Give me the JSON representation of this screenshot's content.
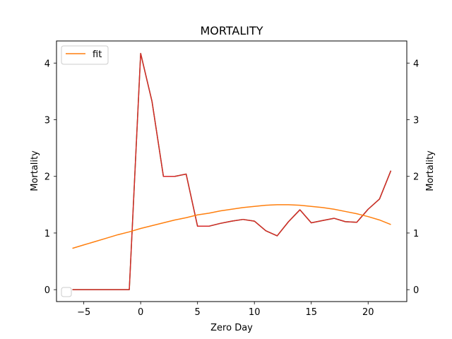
{
  "chart_data": {
    "type": "line",
    "title": "MORTALITY",
    "xlabel": "Zero Day",
    "ylabel_left": "Mortality",
    "ylabel_right": "Mortality",
    "xlim": [
      -7.4,
      23.4
    ],
    "ylim": [
      -0.21,
      4.39
    ],
    "x_ticks": [
      -5,
      0,
      5,
      10,
      15,
      20
    ],
    "x_tick_labels": [
      "−5",
      "0",
      "5",
      "10",
      "15",
      "20"
    ],
    "y_ticks": [
      0,
      1,
      2,
      3,
      4
    ],
    "y_tick_labels": [
      "0",
      "1",
      "2",
      "3",
      "4"
    ],
    "grid": false,
    "legend_placement": "upper-left",
    "series": [
      {
        "name": "",
        "color": "#2ca02c",
        "x": [
          -6,
          -5,
          -4,
          -3,
          -2,
          -1,
          0,
          1,
          2,
          3,
          4,
          5,
          6,
          7,
          8,
          9,
          10,
          11,
          12,
          13,
          14,
          15,
          16,
          17,
          18,
          19,
          20,
          21,
          22
        ],
        "values": [
          0,
          0,
          0,
          0,
          0,
          0,
          4.17,
          3.32,
          2.0,
          2.0,
          2.04,
          1.12,
          1.12,
          1.17,
          1.21,
          1.24,
          1.21,
          1.04,
          0.95,
          1.2,
          1.41,
          1.18,
          1.22,
          1.26,
          1.2,
          1.19,
          1.42,
          1.6,
          2.1
        ]
      },
      {
        "name": "",
        "color": "#d62728",
        "x": [
          -6,
          -5,
          -4,
          -3,
          -2,
          -1,
          0,
          1,
          2,
          3,
          4,
          5,
          6,
          7,
          8,
          9,
          10,
          11,
          12,
          13,
          14,
          15,
          16,
          17,
          18,
          19,
          20,
          21,
          22
        ],
        "values": [
          0,
          0,
          0,
          0,
          0,
          0,
          4.17,
          3.32,
          2.0,
          2.0,
          2.04,
          1.12,
          1.12,
          1.17,
          1.21,
          1.24,
          1.21,
          1.04,
          0.95,
          1.2,
          1.41,
          1.18,
          1.22,
          1.26,
          1.2,
          1.19,
          1.42,
          1.6,
          2.1
        ]
      },
      {
        "name": "fit",
        "color": "#ff7f0e",
        "x": [
          -6,
          -5,
          -4,
          -3,
          -2,
          -1,
          0,
          1,
          2,
          3,
          4,
          5,
          6,
          7,
          8,
          9,
          10,
          11,
          12,
          13,
          14,
          15,
          16,
          17,
          18,
          19,
          20,
          21,
          22
        ],
        "values": [
          0.73,
          0.79,
          0.85,
          0.91,
          0.97,
          1.02,
          1.08,
          1.13,
          1.18,
          1.23,
          1.27,
          1.32,
          1.35,
          1.39,
          1.42,
          1.45,
          1.47,
          1.49,
          1.5,
          1.5,
          1.49,
          1.47,
          1.45,
          1.42,
          1.38,
          1.34,
          1.29,
          1.23,
          1.15
        ]
      }
    ],
    "legend": {
      "entries": [
        {
          "label": "fit",
          "color": "#ff7f0e"
        }
      ]
    },
    "secondary_legend_box": {
      "placement": "lower-left"
    }
  }
}
